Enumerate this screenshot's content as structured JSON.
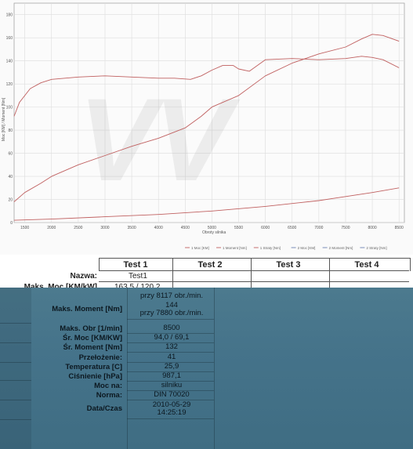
{
  "chart_data": {
    "type": "line",
    "title": "",
    "xlabel": "Obroty silnika",
    "ylabel": "Moc [KM] / Moment [Nm]",
    "x_ticks": [
      1500,
      2000,
      2500,
      3000,
      3500,
      4000,
      4500,
      5000,
      5500,
      6000,
      6500,
      7000,
      7500,
      8000,
      8500
    ],
    "x_tick_labels": [
      "1500",
      "2000",
      "2500",
      "3000",
      "3500",
      "4000",
      "4500",
      "5000",
      "5500",
      "6000",
      "6500",
      "7000",
      "7500",
      "8000",
      "8500"
    ],
    "xlim": [
      1300,
      8600
    ],
    "y_ticks": [
      0,
      20,
      40,
      60,
      80,
      100,
      120,
      140,
      160,
      180
    ],
    "y_tick_labels": [
      "0",
      "20",
      "40",
      "60",
      "80",
      "100",
      "120",
      "140",
      "160",
      "180"
    ],
    "ylim": [
      0,
      190
    ],
    "grid": true,
    "legend_position": "bottom-right",
    "series": [
      {
        "name": "1 Moc [KM]",
        "color": "#c06060",
        "x": [
          1300,
          1500,
          1800,
          2000,
          2500,
          3000,
          3500,
          4000,
          4500,
          4800,
          5000,
          5200,
          5500,
          6000,
          6500,
          7000,
          7500,
          7800,
          8000,
          8200,
          8500
        ],
        "y": [
          18,
          26,
          34,
          40,
          50,
          58,
          66,
          73,
          82,
          92,
          100,
          104,
          110,
          127,
          138,
          146,
          152,
          159,
          163,
          162,
          157
        ]
      },
      {
        "name": "1 Moment [Nm]",
        "color": "#c06060",
        "x": [
          1300,
          1400,
          1600,
          1800,
          2000,
          2500,
          3000,
          3500,
          4000,
          4300,
          4600,
          4800,
          5000,
          5200,
          5400,
          5500,
          5700,
          6000,
          6500,
          7000,
          7500,
          7800,
          8000,
          8200,
          8500
        ],
        "y": [
          92,
          104,
          116,
          121,
          124,
          126,
          127,
          126,
          125,
          125,
          124,
          127,
          132,
          136,
          136,
          133,
          131,
          141,
          142,
          141,
          142,
          144,
          143,
          141,
          134
        ]
      },
      {
        "name": "1 Straty [Nm]",
        "color": "#c06060",
        "x": [
          1300,
          2000,
          3000,
          4000,
          5000,
          6000,
          7000,
          8000,
          8500
        ],
        "y": [
          2,
          3,
          5,
          7,
          10,
          14,
          19,
          26,
          30
        ]
      }
    ],
    "legend": [
      "1 Moc [KM]",
      "1 Moment [Nm]",
      "1 Straty [Nm]",
      "2 Moc [KM]",
      "2 Moment [Nm]",
      "2 Straty [Nm]"
    ]
  },
  "table": {
    "columns": [
      "Test 1",
      "Test 2",
      "Test 3",
      "Test 4"
    ],
    "nazwa_label": "Nazwa:",
    "nazwa_value": "Test1",
    "maks_moc_label": "Maks. Moc [KM/kW]",
    "maks_moc_value": "163,5 / 120,2",
    "maks_moc_sub": "przy 8117 obr./min.",
    "rows": [
      {
        "label": "Maks. Moment [Nm]",
        "value": "144",
        "sub": "przy 7880 obr./min."
      },
      {
        "label": "Maks. Obr [1/min]",
        "value": "8500"
      },
      {
        "label": "Śr. Moc [KM/KW]",
        "value": "94,0 / 69,1"
      },
      {
        "label": "Śr. Moment [Nm]",
        "value": "132"
      },
      {
        "label": "Przełożenie:",
        "value": "41"
      },
      {
        "label": "Temperatura [C]",
        "value": "25,9"
      },
      {
        "label": "Ciśnienie [hPa]",
        "value": "987,1"
      },
      {
        "label": "Moc na:",
        "value": "silniku"
      },
      {
        "label": "Norma:",
        "value": "DIN 70020"
      },
      {
        "label": "Data/Czas",
        "value": "2010-05-29",
        "sub": "14:25:19"
      }
    ]
  }
}
